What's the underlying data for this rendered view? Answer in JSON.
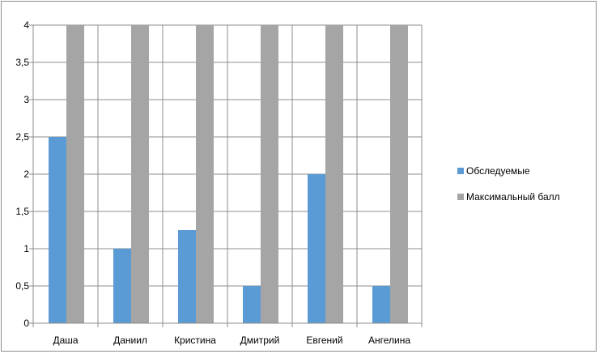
{
  "chart_data": {
    "type": "bar",
    "categories": [
      "Даша",
      "Даниил",
      "Кристина",
      "Дмитрий",
      "Евгений",
      "Ангелина"
    ],
    "series": [
      {
        "name": "Обследуемые",
        "values": [
          2.5,
          1,
          1.25,
          0.5,
          2,
          0.5
        ],
        "color": "#5b9bd5"
      },
      {
        "name": "Максимальный балл",
        "values": [
          4,
          4,
          4,
          4,
          4,
          4
        ],
        "color": "#a5a5a5"
      }
    ],
    "yticks": [
      "0",
      "0,5",
      "1",
      "1,5",
      "2",
      "2,5",
      "3",
      "3,5",
      "4"
    ],
    "ylim": [
      0,
      4
    ],
    "title": "",
    "xlabel": "",
    "ylabel": "",
    "grid": true,
    "legend_position": "right"
  }
}
